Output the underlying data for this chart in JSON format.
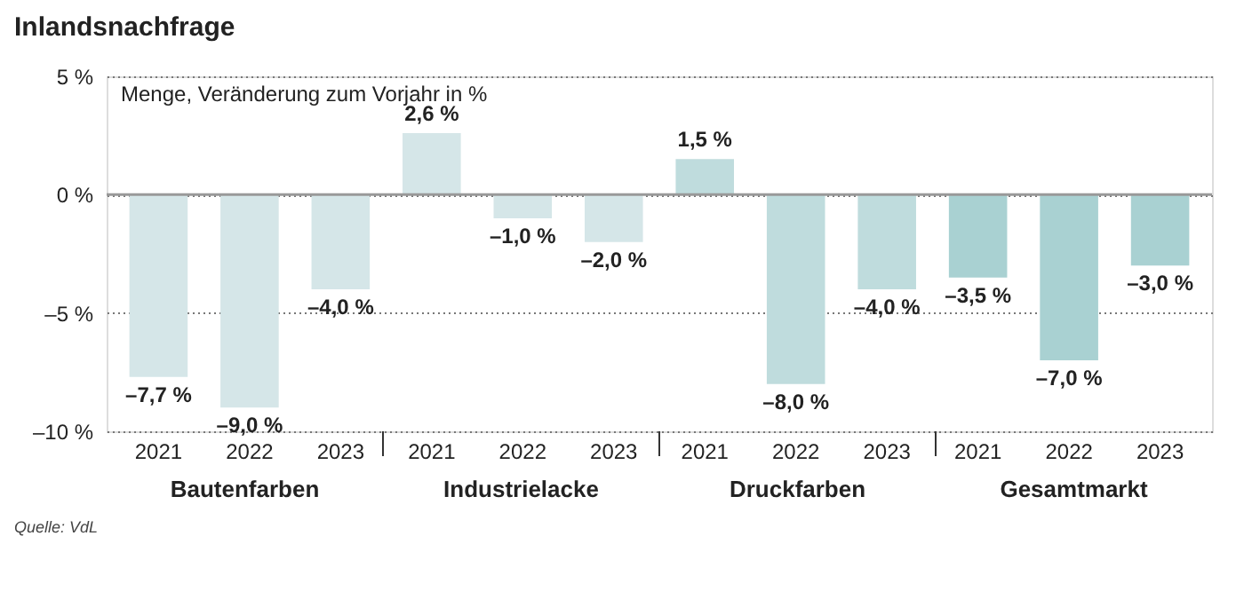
{
  "chart_data": {
    "type": "bar",
    "title": "Inlandsnachfrage",
    "categories": [
      "2021",
      "2022",
      "2023",
      "2021",
      "2022",
      "2023",
      "2021",
      "2022",
      "2023",
      "2021",
      "2022",
      "2023"
    ],
    "values": [
      -7.7,
      -9.0,
      -4.0,
      2.6,
      -1.0,
      -2.0,
      1.5,
      -8.0,
      -4.0,
      -3.5,
      -7.0,
      -3.0
    ],
    "value_labels": [
      "–7,7 %",
      "–9,0 %",
      "–4,0 %",
      "2,6 %",
      "–1,0 %",
      "–2,0 %",
      "1,5 %",
      "–8,0 %",
      "–4,0 %",
      "–3,5 %",
      "–7,0 %",
      "–3,0 %"
    ],
    "colors": [
      "#d5e6e8",
      "#d5e6e8",
      "#d5e6e8",
      "#d5e6e8",
      "#d5e6e8",
      "#d5e6e8",
      "#bfdcdd",
      "#bfdcdd",
      "#bfdcdd",
      "#a9d1d2",
      "#a9d1d2",
      "#a9d1d2"
    ],
    "ylim": [
      -10,
      5
    ],
    "yticks": [
      {
        "value": -10,
        "label": "–10 %"
      },
      {
        "value": -5,
        "label": "–5 %"
      },
      {
        "value": 0,
        "label": "0 %"
      },
      {
        "value": 5,
        "label": "5 %"
      }
    ],
    "grid": "y",
    "ref_lines": [
      {
        "axis": "y",
        "value": 0,
        "color": "#999999"
      }
    ],
    "annotations": [
      "Menge, Veränderung zum Vorjahr in %",
      "Bautenfarben",
      "Industrielacke",
      "Druckfarben",
      "Gesamtmarkt",
      "Quelle: VdL"
    ]
  }
}
